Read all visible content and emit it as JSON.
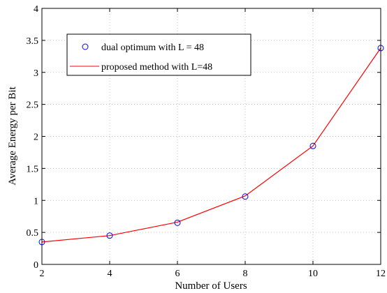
{
  "chart_data": {
    "type": "line",
    "title": "",
    "xlabel": "Number of Users",
    "ylabel": "Average Energy per Bit",
    "xlim": [
      2,
      12
    ],
    "ylim": [
      0,
      4
    ],
    "xticks": [
      2,
      4,
      6,
      8,
      10,
      12
    ],
    "yticks": [
      0,
      0.5,
      1,
      1.5,
      2,
      2.5,
      3,
      3.5,
      4
    ],
    "xtick_labels": [
      "2",
      "4",
      "6",
      "8",
      "10",
      "12"
    ],
    "ytick_labels": [
      "0",
      "0.5",
      "1",
      "1.5",
      "2",
      "2.5",
      "3",
      "3.5",
      "4"
    ],
    "grid": true,
    "legend_position": "top-left",
    "x": [
      2,
      4,
      6,
      8,
      10,
      12
    ],
    "series": [
      {
        "name": "dual optimum with L = 48",
        "style": "markers",
        "marker": "circle",
        "color": "#0000ff",
        "values": [
          0.35,
          0.45,
          0.65,
          1.06,
          1.85,
          3.38
        ]
      },
      {
        "name": "proposed method with L=48",
        "style": "line",
        "color": "#ff0000",
        "values": [
          0.35,
          0.45,
          0.66,
          1.07,
          1.85,
          3.38
        ]
      }
    ]
  }
}
